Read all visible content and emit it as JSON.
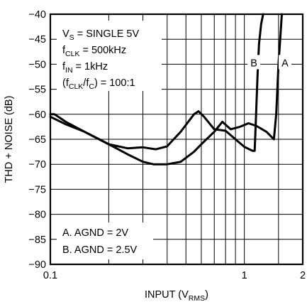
{
  "chart_data": {
    "type": "line",
    "x_scale": "log",
    "xlim": [
      0.1,
      2
    ],
    "ylim": [
      -90,
      -40
    ],
    "grid": true,
    "ylabel": "THD + NOISE (dB)",
    "xlabel": {
      "main": "INPUT (V",
      "sub": "RMS",
      "close": ")"
    },
    "x_ticks": [
      {
        "value": 0.1,
        "label": "0.1"
      },
      {
        "value": 1,
        "label": "1"
      },
      {
        "value": 2,
        "label": "2"
      }
    ],
    "x_minor_grid": [
      0.2,
      0.3,
      0.4,
      0.5,
      0.6,
      0.7,
      0.8,
      0.9,
      1.5
    ],
    "y_ticks": [
      {
        "value": -40,
        "label": "−40"
      },
      {
        "value": -45,
        "label": "−45"
      },
      {
        "value": -50,
        "label": "−50"
      },
      {
        "value": -55,
        "label": "−55"
      },
      {
        "value": -60,
        "label": "−60"
      },
      {
        "value": -65,
        "label": "−65"
      },
      {
        "value": -70,
        "label": "−70"
      },
      {
        "value": -75,
        "label": "−75"
      },
      {
        "value": -80,
        "label": "−80"
      },
      {
        "value": -85,
        "label": "−85"
      },
      {
        "value": -90,
        "label": "−90"
      }
    ],
    "conditions": [
      {
        "main": "V",
        "sub": "S",
        "rest": " = SINGLE 5V"
      },
      {
        "main": "f",
        "sub": "CLK",
        "rest": " = 500kHz"
      },
      {
        "main": "f",
        "sub": "IN",
        "rest": " = 1kHz"
      },
      {
        "main": "(f",
        "sub": "CLK",
        "rest": "/f",
        "sub2": "C",
        "rest2": ") = 100:1"
      }
    ],
    "legend_notes": [
      "A. AGND = 2V",
      "B. AGND = 2.5V"
    ],
    "series": [
      {
        "name": "A",
        "x": [
          0.1,
          0.12,
          0.15,
          0.2,
          0.25,
          0.3,
          0.34,
          0.4,
          0.47,
          0.55,
          0.6,
          0.7,
          0.77,
          0.85,
          0.95,
          1.05,
          1.15,
          1.3,
          1.42,
          1.46,
          1.48,
          1.5,
          1.53,
          1.56
        ],
        "y": [
          -60.5,
          -62,
          -63.5,
          -66,
          -68,
          -69.5,
          -70,
          -70,
          -69.5,
          -67.5,
          -66,
          -63.5,
          -61.5,
          -63,
          -62.5,
          -61.8,
          -62.3,
          -63.5,
          -65,
          -60,
          -55,
          -50,
          -45,
          -40
        ]
      },
      {
        "name": "B",
        "x": [
          0.1,
          0.105,
          0.12,
          0.15,
          0.2,
          0.25,
          0.3,
          0.35,
          0.4,
          0.47,
          0.55,
          0.58,
          0.62,
          0.7,
          0.8,
          0.9,
          1.0,
          1.1,
          1.13,
          1.15,
          1.17,
          1.19,
          1.22,
          1.25
        ],
        "y": [
          -60,
          -60,
          -61.5,
          -63.5,
          -66,
          -66.8,
          -66.6,
          -67,
          -66.4,
          -63.5,
          -60,
          -59.4,
          -60.5,
          -63,
          -63.3,
          -65,
          -66.5,
          -67.3,
          -67.3,
          -60,
          -52,
          -46,
          -42,
          -40
        ]
      }
    ],
    "series_labels": [
      {
        "series": "A",
        "text": "A",
        "x": 1.62,
        "y": -50
      },
      {
        "series": "B",
        "text": "B",
        "x": 1.12,
        "y": -50
      }
    ]
  }
}
